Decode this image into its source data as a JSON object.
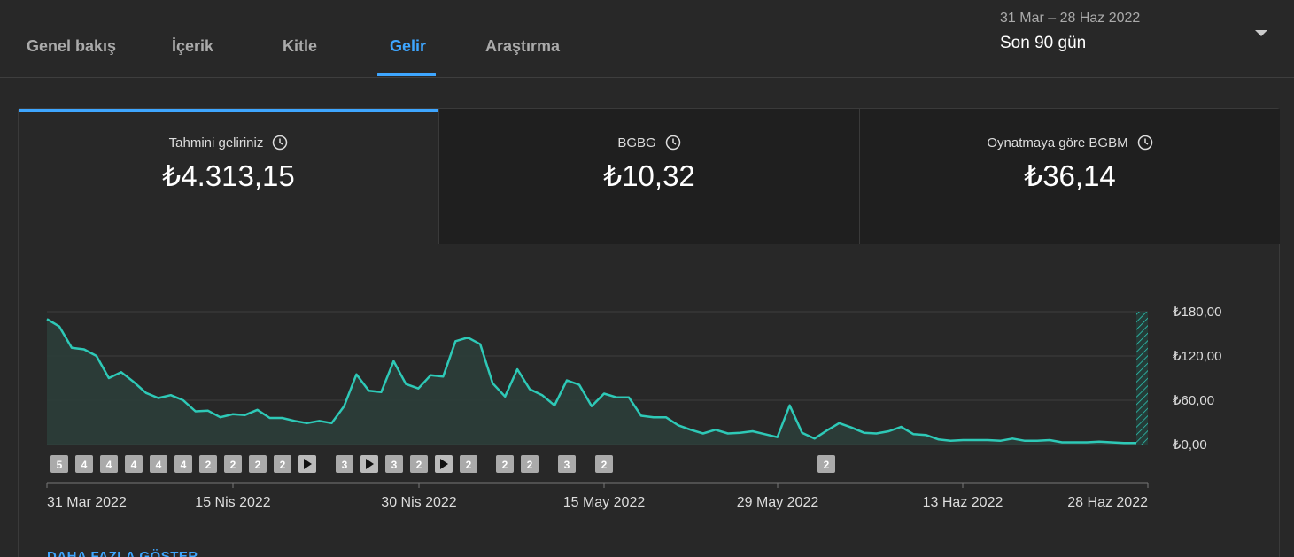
{
  "tabs": [
    {
      "label": "Genel bakış",
      "active": false
    },
    {
      "label": "İçerik",
      "active": false
    },
    {
      "label": "Kitle",
      "active": false
    },
    {
      "label": "Gelir",
      "active": true
    },
    {
      "label": "Araştırma",
      "active": false
    }
  ],
  "date_range": {
    "span": "31 Mar – 28 Haz 2022",
    "label": "Son 90 gün"
  },
  "metrics": [
    {
      "label": "Tahmini geliriniz",
      "value": "₺4.313,15",
      "icon": "clock-icon",
      "active": true
    },
    {
      "label": "BGBG",
      "value": "₺10,32",
      "icon": "clock-icon",
      "active": false
    },
    {
      "label": "Oynatmaya göre BGBM",
      "value": "₺36,14",
      "icon": "clock-icon",
      "active": false
    }
  ],
  "chart_data": {
    "type": "area",
    "series": [
      {
        "values": [
          170,
          160,
          131,
          129,
          120,
          90,
          98,
          85,
          70,
          63,
          67,
          60,
          45,
          46,
          37,
          41,
          40,
          47,
          36,
          36,
          32,
          29,
          32,
          29,
          52,
          95,
          73,
          71,
          113,
          82,
          76,
          94,
          92,
          140,
          145,
          136,
          83,
          65,
          102,
          75,
          67,
          53,
          87,
          81,
          52,
          69,
          64,
          64,
          39,
          37,
          37,
          26,
          20,
          15,
          20,
          15,
          16,
          18,
          14,
          10,
          53,
          16,
          8,
          19,
          29,
          23,
          16,
          15,
          18,
          24,
          14,
          13,
          7,
          5,
          6,
          6,
          6,
          5,
          8,
          5,
          5,
          6,
          3,
          3,
          3,
          4,
          3,
          2,
          2
        ]
      }
    ],
    "x_ticks": [
      "31 Mar 2022",
      "15 Nis 2022",
      "30 Nis 2022",
      "15 May 2022",
      "29 May 2022",
      "13 Haz 2022",
      "28 Haz 2022"
    ],
    "y_ticks": [
      "₺0,00",
      "₺60,00",
      "₺120,00",
      "₺180,00"
    ],
    "ylim": [
      0,
      180
    ],
    "grid": true,
    "markers": [
      "5",
      "4",
      "4",
      "4",
      "4",
      "4",
      "2",
      "2",
      "2",
      "2",
      "play",
      "3",
      "play",
      "3",
      "2",
      "play",
      "2",
      "2",
      "2",
      "3",
      "2",
      "2"
    ],
    "colors": {
      "line": "#2ec9b7",
      "fill": "#2b3c38",
      "grid": "#3e3e3e",
      "marker_bg": "#aaaaaa"
    }
  },
  "show_more_label": "DAHA FAZLA GÖSTER"
}
